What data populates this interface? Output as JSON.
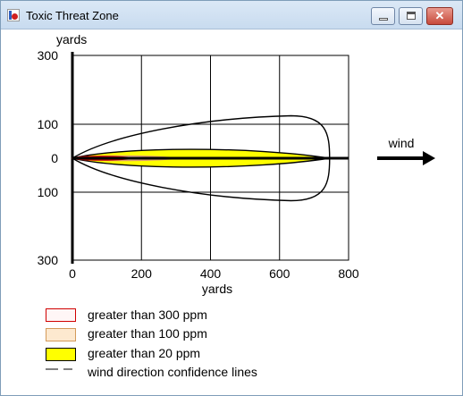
{
  "window": {
    "title": "Toxic Threat Zone",
    "icon": "app-icon"
  },
  "title_buttons": {
    "minimize_icon": "minimize-icon",
    "maximize_icon": "maximize-icon",
    "close_icon": "close-icon"
  },
  "chart_data": {
    "type": "area",
    "ylabel": "yards",
    "xlabel": "yards",
    "x_ticks": [
      "0",
      "200",
      "400",
      "600",
      "800"
    ],
    "y_ticks": [
      "300",
      "100",
      "0",
      "100",
      "300"
    ],
    "xlim": [
      0,
      800
    ],
    "ylim": [
      -300,
      300
    ],
    "grid": true,
    "series": [
      {
        "name": "greater than 300 ppm",
        "max_downwind_yards": 175,
        "max_half_width_yards": 6,
        "color": "#cc0000"
      },
      {
        "name": "greater than 100 ppm",
        "max_downwind_yards": 310,
        "max_half_width_yards": 9,
        "color": "#f4c58a"
      },
      {
        "name": "greater than 20 ppm",
        "max_downwind_yards": 745,
        "max_half_width_yards": 35,
        "color": "#ffff00"
      },
      {
        "name": "wind direction confidence lines",
        "max_downwind_yards": 745,
        "max_half_width_yards": 125,
        "color": "#000000"
      }
    ],
    "wind_label": "wind"
  },
  "legend": [
    {
      "label": "greater than 300 ppm"
    },
    {
      "label": "greater than 100 ppm"
    },
    {
      "label": "greater than 20 ppm"
    },
    {
      "label": "wind direction confidence lines"
    }
  ]
}
